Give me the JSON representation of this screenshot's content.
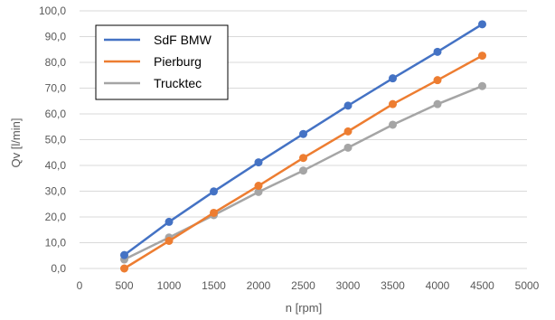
{
  "chart_data": {
    "type": "line",
    "title": "",
    "xlabel": "n [rpm]",
    "ylabel": "Qv [l/min]",
    "xlim": [
      0,
      5000
    ],
    "ylim": [
      0,
      100
    ],
    "x_ticks": [
      "0",
      "500",
      "1000",
      "1500",
      "2000",
      "2500",
      "3000",
      "3500",
      "4000",
      "4500",
      "5000"
    ],
    "y_ticks": [
      "0,0",
      "10,0",
      "20,0",
      "30,0",
      "40,0",
      "50,0",
      "60,0",
      "70,0",
      "80,0",
      "90,0",
      "100,0"
    ],
    "grid": "horizontal",
    "legend_position": "top-left",
    "x": [
      500,
      1000,
      1500,
      2000,
      2500,
      3000,
      3500,
      4000,
      4500
    ],
    "series": [
      {
        "name": "SdF BMW",
        "color": "#4472c4",
        "values": [
          5.2,
          18.1,
          29.9,
          41.2,
          52.2,
          63.2,
          73.8,
          84.1,
          94.8
        ]
      },
      {
        "name": "Pierburg",
        "color": "#ed7d31",
        "values": [
          0.0,
          10.7,
          21.6,
          32.1,
          42.9,
          53.2,
          63.8,
          73.1,
          82.6
        ]
      },
      {
        "name": "Trucktec",
        "color": "#a5a5a5",
        "values": [
          3.5,
          12.0,
          20.7,
          29.7,
          38.0,
          46.9,
          55.8,
          63.8,
          70.8
        ]
      }
    ]
  }
}
